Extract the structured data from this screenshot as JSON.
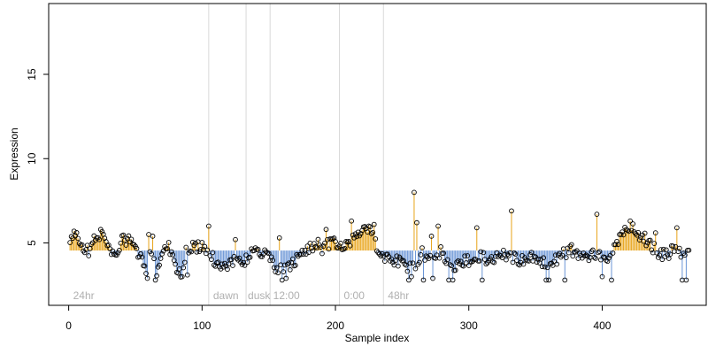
{
  "chart_data": {
    "type": "scatter",
    "title": "",
    "xlabel": "Sample index",
    "ylabel": "Expression",
    "xlim": [
      -15,
      478
    ],
    "ylim": [
      1.3,
      19.2
    ],
    "xticks": [
      0,
      100,
      200,
      300,
      400
    ],
    "yticks": [
      5,
      10,
      15
    ],
    "baseline": 4.55,
    "colors": {
      "above": "#e8a317",
      "below": "#6a95d6",
      "point_edge": "#000000",
      "vline": "#d9d9d9",
      "annotation": "#b0b0b0"
    },
    "vlines": [
      105,
      133,
      151,
      203,
      236
    ],
    "annotations": [
      {
        "label": "24hr",
        "x": 2
      },
      {
        "label": "dawn",
        "x": 107
      },
      {
        "label": "dusk",
        "x": 133
      },
      {
        "label": "12:00",
        "x": 152
      },
      {
        "label": "0:00",
        "x": 205
      },
      {
        "label": "48hr",
        "x": 238
      }
    ],
    "anchors": [
      [
        1,
        5.0
      ],
      [
        3,
        5.2
      ],
      [
        6,
        5.5
      ],
      [
        10,
        4.8
      ],
      [
        15,
        4.5
      ],
      [
        20,
        5.3
      ],
      [
        25,
        5.6
      ],
      [
        30,
        4.6
      ],
      [
        35,
        4.4
      ],
      [
        40,
        5.1
      ],
      [
        45,
        5.2
      ],
      [
        50,
        4.7
      ],
      [
        55,
        3.9
      ],
      [
        58,
        3.0
      ],
      [
        62,
        4.6
      ],
      [
        66,
        3.4
      ],
      [
        70,
        4.4
      ],
      [
        75,
        4.9
      ],
      [
        80,
        3.7
      ],
      [
        84,
        3.0
      ],
      [
        88,
        4.5
      ],
      [
        95,
        4.8
      ],
      [
        100,
        4.7
      ],
      [
        105,
        4.4
      ],
      [
        110,
        3.9
      ],
      [
        115,
        3.6
      ],
      [
        120,
        3.8
      ],
      [
        125,
        4.0
      ],
      [
        130,
        3.7
      ],
      [
        135,
        4.3
      ],
      [
        140,
        4.6
      ],
      [
        145,
        4.4
      ],
      [
        150,
        4.1
      ],
      [
        155,
        3.6
      ],
      [
        160,
        3.3
      ],
      [
        165,
        3.6
      ],
      [
        170,
        3.9
      ],
      [
        175,
        4.4
      ],
      [
        180,
        4.7
      ],
      [
        185,
        5.0
      ],
      [
        190,
        4.7
      ],
      [
        195,
        4.9
      ],
      [
        200,
        5.0
      ],
      [
        205,
        4.6
      ],
      [
        210,
        5.0
      ],
      [
        215,
        5.4
      ],
      [
        220,
        5.8
      ],
      [
        224,
        5.9
      ],
      [
        228,
        5.5
      ],
      [
        232,
        4.5
      ],
      [
        236,
        4.0
      ],
      [
        240,
        4.2
      ],
      [
        245,
        4.0
      ],
      [
        250,
        3.8
      ],
      [
        255,
        3.4
      ],
      [
        260,
        3.8
      ],
      [
        265,
        4.4
      ],
      [
        270,
        4.2
      ],
      [
        275,
        4.2
      ],
      [
        280,
        4.5
      ],
      [
        285,
        3.6
      ],
      [
        290,
        3.5
      ],
      [
        295,
        3.8
      ],
      [
        300,
        4.0
      ],
      [
        305,
        4.3
      ],
      [
        310,
        4.2
      ],
      [
        315,
        4.0
      ],
      [
        320,
        4.1
      ],
      [
        325,
        4.4
      ],
      [
        330,
        4.3
      ],
      [
        335,
        4.1
      ],
      [
        340,
        3.9
      ],
      [
        345,
        4.1
      ],
      [
        350,
        4.1
      ],
      [
        355,
        3.8
      ],
      [
        360,
        3.9
      ],
      [
        365,
        4.0
      ],
      [
        370,
        4.3
      ],
      [
        375,
        4.6
      ],
      [
        380,
        4.5
      ],
      [
        385,
        4.2
      ],
      [
        390,
        4.3
      ],
      [
        395,
        4.4
      ],
      [
        400,
        4.0
      ],
      [
        405,
        3.9
      ],
      [
        410,
        4.9
      ],
      [
        415,
        5.6
      ],
      [
        420,
        5.9
      ],
      [
        425,
        5.7
      ],
      [
        430,
        5.4
      ],
      [
        435,
        5.0
      ],
      [
        440,
        4.6
      ],
      [
        445,
        4.3
      ],
      [
        450,
        4.4
      ],
      [
        455,
        4.6
      ],
      [
        460,
        4.4
      ],
      [
        463,
        4.3
      ]
    ],
    "spikes": [
      [
        4,
        5.7
      ],
      [
        24,
        5.8
      ],
      [
        60,
        5.5
      ],
      [
        63,
        5.4
      ],
      [
        105,
        6.0
      ],
      [
        125,
        5.2
      ],
      [
        158,
        5.3
      ],
      [
        193,
        5.8
      ],
      [
        212,
        6.3
      ],
      [
        214,
        5.3
      ],
      [
        225,
        6.0
      ],
      [
        229,
        6.1
      ],
      [
        259,
        8.0
      ],
      [
        261,
        6.2
      ],
      [
        272,
        5.4
      ],
      [
        277,
        6.0
      ],
      [
        306,
        5.9
      ],
      [
        332,
        6.9
      ],
      [
        396,
        6.7
      ],
      [
        421,
        6.3
      ],
      [
        440,
        5.6
      ],
      [
        456,
        5.9
      ],
      [
        59,
        2.9
      ],
      [
        65,
        2.8
      ],
      [
        85,
        3.0
      ],
      [
        89,
        3.1
      ],
      [
        160,
        2.8
      ],
      [
        163,
        2.9
      ],
      [
        255,
        2.8
      ],
      [
        257,
        3.0
      ],
      [
        266,
        2.8
      ],
      [
        273,
        2.9
      ],
      [
        285,
        2.8
      ],
      [
        288,
        2.8
      ],
      [
        310,
        2.8
      ],
      [
        358,
        2.8
      ],
      [
        360,
        2.8
      ],
      [
        372,
        2.8
      ],
      [
        400,
        3.0
      ],
      [
        407,
        2.8
      ],
      [
        460,
        2.8
      ],
      [
        463,
        2.8
      ]
    ],
    "n_points": 465,
    "seed": 20240611
  }
}
